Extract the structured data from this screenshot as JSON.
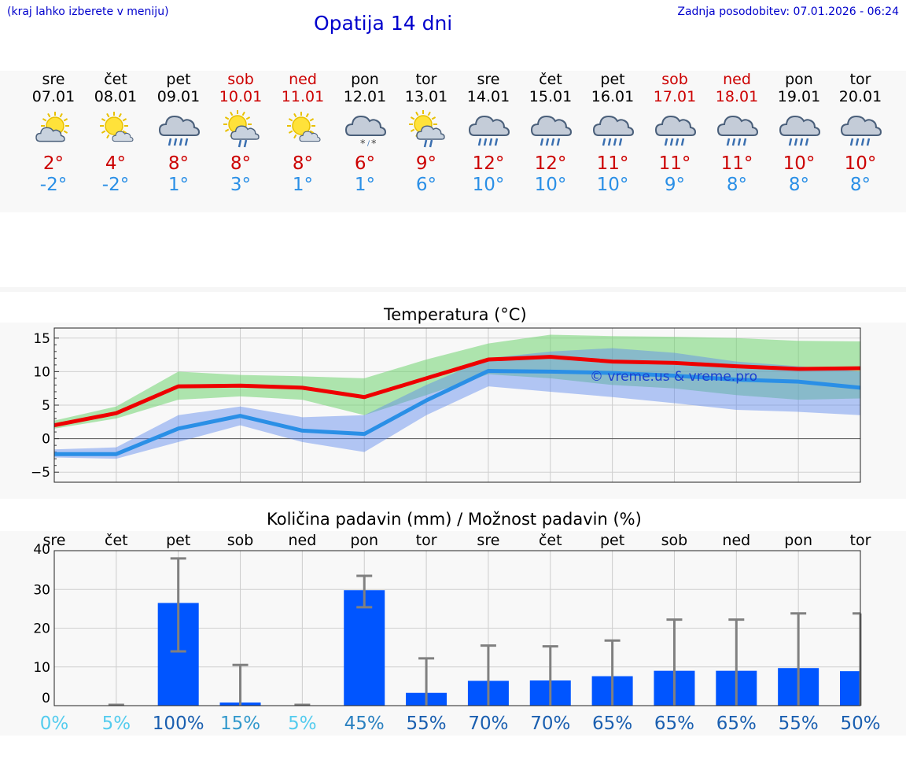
{
  "header": {
    "region_hint": "(kraj lahko izberete v meniju)",
    "title": "Opatija 14 dni",
    "last_update": "Zadnja posodobitev: 07.01.2026 - 06:24"
  },
  "colors": {
    "header_blue": "#0000cc",
    "tmax_red": "#cc0000",
    "tmin_blue": "#2a8fe6",
    "bar_blue": "#0055ff"
  },
  "days": [
    {
      "name": "sre",
      "date": "07.01",
      "weekend": false,
      "icon": "sun-cloud-icon",
      "tmax": "2°",
      "tmin": "-2°"
    },
    {
      "name": "čet",
      "date": "08.01",
      "weekend": false,
      "icon": "sun-small-cloud-icon",
      "tmax": "4°",
      "tmin": "-2°"
    },
    {
      "name": "pet",
      "date": "09.01",
      "weekend": false,
      "icon": "rain-cloud-icon",
      "tmax": "8°",
      "tmin": "1°"
    },
    {
      "name": "sob",
      "date": "10.01",
      "weekend": true,
      "icon": "sun-rain-cloud-icon",
      "tmax": "8°",
      "tmin": "3°"
    },
    {
      "name": "ned",
      "date": "11.01",
      "weekend": true,
      "icon": "sun-small-cloud-icon",
      "tmax": "8°",
      "tmin": "1°"
    },
    {
      "name": "pon",
      "date": "12.01",
      "weekend": false,
      "icon": "snow-cloud-icon",
      "tmax": "6°",
      "tmin": "1°"
    },
    {
      "name": "tor",
      "date": "13.01",
      "weekend": false,
      "icon": "sun-rain-cloud-icon",
      "tmax": "9°",
      "tmin": "6°"
    },
    {
      "name": "sre",
      "date": "14.01",
      "weekend": false,
      "icon": "rain-cloud-icon",
      "tmax": "12°",
      "tmin": "10°"
    },
    {
      "name": "čet",
      "date": "15.01",
      "weekend": false,
      "icon": "rain-cloud-icon",
      "tmax": "12°",
      "tmin": "10°"
    },
    {
      "name": "pet",
      "date": "16.01",
      "weekend": false,
      "icon": "rain-cloud-icon",
      "tmax": "11°",
      "tmin": "10°"
    },
    {
      "name": "sob",
      "date": "17.01",
      "weekend": true,
      "icon": "rain-cloud-icon",
      "tmax": "11°",
      "tmin": "9°"
    },
    {
      "name": "ned",
      "date": "18.01",
      "weekend": true,
      "icon": "rain-cloud-icon",
      "tmax": "11°",
      "tmin": "8°"
    },
    {
      "name": "pon",
      "date": "19.01",
      "weekend": false,
      "icon": "rain-cloud-icon",
      "tmax": "10°",
      "tmin": "8°"
    },
    {
      "name": "tor",
      "date": "20.01",
      "weekend": false,
      "icon": "rain-cloud-icon",
      "tmax": "10°",
      "tmin": "8°"
    }
  ],
  "chart_data": [
    {
      "type": "line",
      "title": "Temperatura (°C)",
      "ylim": [
        -6.5,
        16.5
      ],
      "yticks": [
        15,
        10,
        5,
        0,
        -5
      ],
      "ytick_labels": [
        "15",
        "10",
        "5",
        "0",
        "−5"
      ],
      "watermark": "© vreme.us & vreme.pro",
      "x_days": 14,
      "series": [
        {
          "name": "tmax",
          "color": "#ee0000",
          "values": [
            2.0,
            3.8,
            7.8,
            7.9,
            7.6,
            6.2,
            9.0,
            11.8,
            12.2,
            11.5,
            11.3,
            10.8,
            10.4,
            10.5
          ]
        },
        {
          "name": "tmax_range_low",
          "values": [
            1.5,
            3.0,
            5.8,
            6.3,
            5.8,
            3.5,
            6.5,
            9.6,
            9.0,
            8.0,
            7.5,
            6.5,
            5.8,
            6.0
          ]
        },
        {
          "name": "tmax_range_high",
          "values": [
            2.7,
            4.8,
            10.0,
            9.5,
            9.3,
            9.0,
            11.8,
            14.2,
            15.5,
            15.3,
            15.2,
            15.0,
            14.6,
            14.5
          ]
        },
        {
          "name": "tmin",
          "color": "#2a8fe6",
          "values": [
            -2.3,
            -2.3,
            1.5,
            3.4,
            1.2,
            0.7,
            5.7,
            10.1,
            10.0,
            9.8,
            9.4,
            8.8,
            8.5,
            7.6
          ]
        },
        {
          "name": "tmin_range_low",
          "values": [
            -2.8,
            -3.0,
            -0.5,
            2.0,
            -0.5,
            -2.0,
            3.5,
            7.8,
            7.0,
            6.2,
            5.3,
            4.3,
            4.0,
            3.5
          ]
        },
        {
          "name": "tmin_range_high",
          "values": [
            -1.6,
            -1.3,
            3.5,
            4.8,
            3.2,
            3.5,
            8.0,
            12.0,
            13.0,
            13.5,
            12.8,
            11.5,
            10.8,
            10.0
          ]
        }
      ]
    },
    {
      "type": "bar",
      "title": "Količina padavin (mm) / Možnost padavin (%)",
      "ylim": [
        0,
        40
      ],
      "yticks": [
        40,
        30,
        20,
        10,
        0
      ],
      "ytick_labels": [
        "40",
        "30",
        "20",
        "10",
        "0"
      ],
      "categories": [
        "sre",
        "čet",
        "pet",
        "sob",
        "ned",
        "pon",
        "tor",
        "sre",
        "čet",
        "pet",
        "sob",
        "ned",
        "pon",
        "tor"
      ],
      "values": [
        0.0,
        0.1,
        26.5,
        0.8,
        0.1,
        29.8,
        3.3,
        6.4,
        6.5,
        7.6,
        9.0,
        9.0,
        9.7,
        8.9
      ],
      "error_high": [
        0.0,
        0.2,
        38.0,
        10.5,
        0.2,
        33.5,
        12.2,
        15.5,
        15.3,
        16.8,
        22.2,
        22.2,
        23.8,
        23.8
      ],
      "error_low": [
        0.0,
        0.0,
        14.0,
        0.0,
        0.0,
        25.4,
        0.0,
        0.0,
        0.0,
        0.0,
        0.0,
        0.0,
        0.0,
        0.0
      ],
      "probability_labels": [
        "0%",
        "5%",
        "100%",
        "15%",
        "5%",
        "45%",
        "55%",
        "70%",
        "70%",
        "65%",
        "65%",
        "65%",
        "55%",
        "50%"
      ],
      "probability_colors": [
        "#55ccee",
        "#55ccee",
        "#1a5fb0",
        "#3399cc",
        "#55ccee",
        "#2a80c0",
        "#1a5fb0",
        "#1a5fb0",
        "#1a5fb0",
        "#1a5fb0",
        "#1a5fb0",
        "#1a5fb0",
        "#1a5fb0",
        "#1a5fb0"
      ]
    }
  ]
}
